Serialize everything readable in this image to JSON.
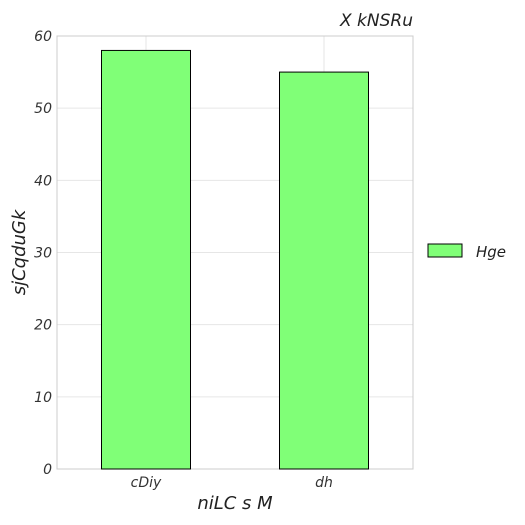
{
  "chart_data": {
    "type": "bar",
    "title": "X kNSRu",
    "xlabel": "niLC s M",
    "ylabel": "sjCqduGk",
    "categories": [
      "cDiy",
      "dh"
    ],
    "series": [
      {
        "name": "Hge",
        "values": [
          58,
          55
        ],
        "color": "#80ff77"
      }
    ],
    "ylim": [
      0,
      60
    ],
    "yticks": [
      0,
      10,
      20,
      30,
      40,
      50,
      60
    ],
    "grid": true,
    "legend_position": "right"
  }
}
